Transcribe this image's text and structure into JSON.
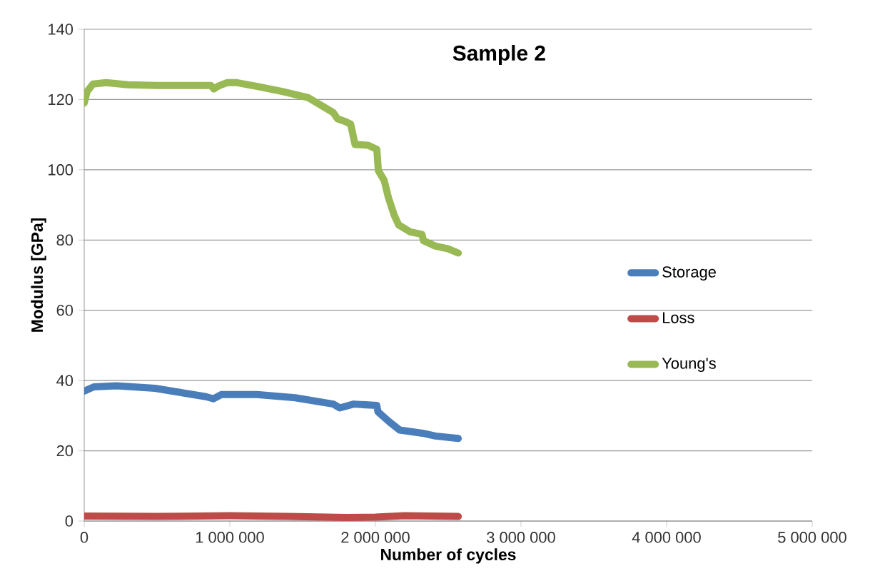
{
  "chart_data": {
    "type": "line",
    "title": "Sample 2",
    "xlabel": "Number of cycles",
    "ylabel": "Modulus [GPa]",
    "xlim": [
      0,
      5000000
    ],
    "ylim": [
      0,
      140
    ],
    "xticks": [
      0,
      {
        "value": 1000000,
        "label": "1 000 000"
      },
      {
        "value": 2000000,
        "label": "2 000 000"
      },
      {
        "value": 3000000,
        "label": "3 000 000"
      },
      {
        "value": 4000000,
        "label": "4 000 000"
      },
      {
        "value": 5000000,
        "label": "5 000 000"
      }
    ],
    "yticks": [
      0,
      20,
      40,
      60,
      80,
      100,
      120,
      140
    ],
    "grid": "y",
    "legend": "right",
    "series": [
      {
        "name": "Storage",
        "color": "#4a7ebb",
        "x": [
          0,
          66000,
          223000,
          486000,
          836000,
          888000,
          941000,
          1186000,
          1449000,
          1711000,
          1755000,
          1851000,
          2009000,
          2018000,
          2097000,
          2167000,
          2324000,
          2412000,
          2569000
        ],
        "values": [
          37.0,
          38.2,
          38.5,
          37.8,
          35.4,
          34.8,
          36.0,
          36.0,
          35.1,
          33.3,
          32.2,
          33.3,
          32.9,
          31.1,
          28.2,
          25.9,
          25.0,
          24.2,
          23.5
        ]
      },
      {
        "name": "Loss",
        "color": "#be4b48",
        "x": [
          0,
          500000,
          1000000,
          1400000,
          1800000,
          2000000,
          2200000,
          2569000
        ],
        "values": [
          1.4,
          1.3,
          1.5,
          1.3,
          1.0,
          1.1,
          1.5,
          1.3
        ]
      },
      {
        "name": "Young's",
        "color": "#98b954",
        "x": [
          0,
          20000,
          60000,
          150000,
          300000,
          500000,
          870000,
          890000,
          920000,
          980000,
          1050000,
          1190000,
          1360000,
          1540000,
          1710000,
          1740000,
          1790000,
          1830000,
          1860000,
          1950000,
          2010000,
          2020000,
          2060000,
          2090000,
          2130000,
          2160000,
          2240000,
          2320000,
          2330000,
          2410000,
          2500000,
          2569000
        ],
        "values": [
          119,
          122.3,
          124.4,
          124.8,
          124.2,
          124,
          124,
          123,
          123.8,
          124.8,
          124.8,
          123.7,
          122.3,
          120.5,
          116.3,
          114.5,
          113.8,
          113,
          107.2,
          107,
          105.8,
          99.8,
          97,
          92,
          87,
          84.3,
          82.3,
          81.6,
          79.8,
          78.3,
          77.5,
          76.3
        ]
      }
    ]
  }
}
